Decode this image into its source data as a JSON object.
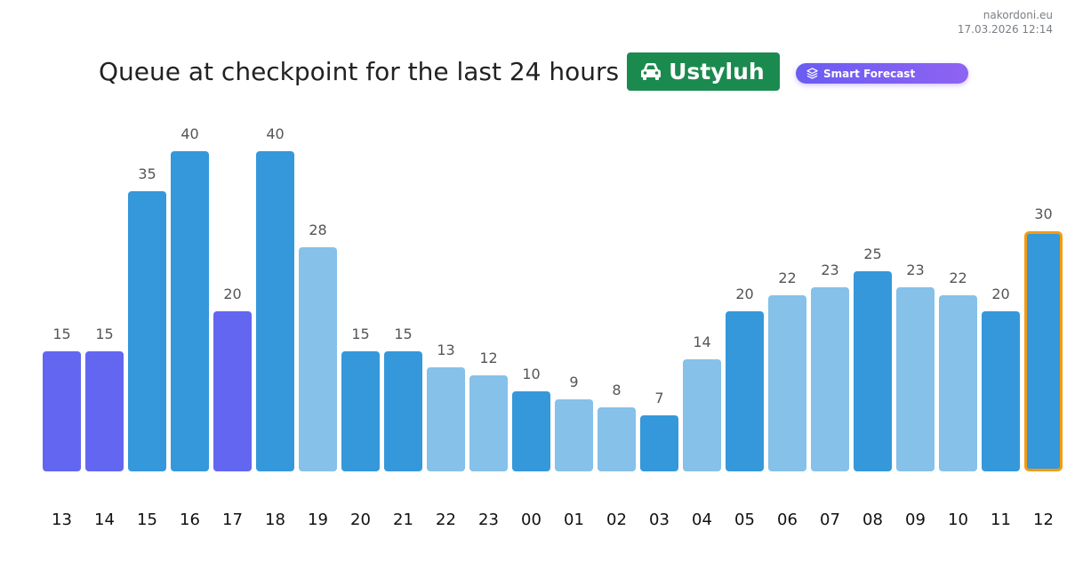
{
  "site": {
    "name": "nakordoni.eu",
    "datetime": "17.03.2026 12:14"
  },
  "header": {
    "title": "Queue at checkpoint for the last 24 hours",
    "checkpoint": "Ustyluh",
    "checkpoint_icon": "car-icon",
    "forecast_label": "Smart Forecast",
    "forecast_icon": "layers-icon"
  },
  "colors": {
    "purple": "#6366f1",
    "blue": "#3498db",
    "light_blue": "#85c1e9",
    "highlight_border": "#f39c12",
    "badge_green": "#1b8a4e"
  },
  "chart_data": {
    "type": "bar",
    "title": "",
    "xlabel": "",
    "ylabel": "",
    "categories": [
      "13",
      "14",
      "15",
      "16",
      "17",
      "18",
      "19",
      "20",
      "21",
      "22",
      "23",
      "00",
      "01",
      "02",
      "03",
      "04",
      "05",
      "06",
      "07",
      "08",
      "09",
      "10",
      "11",
      "12"
    ],
    "values": [
      15,
      15,
      35,
      40,
      20,
      40,
      28,
      15,
      15,
      13,
      12,
      10,
      9,
      8,
      7,
      14,
      20,
      22,
      23,
      25,
      23,
      22,
      20,
      30
    ],
    "bar_colors": [
      "purple",
      "purple",
      "blue",
      "blue",
      "purple",
      "blue",
      "light_blue",
      "blue",
      "blue",
      "light_blue",
      "light_blue",
      "blue",
      "light_blue",
      "light_blue",
      "blue",
      "light_blue",
      "blue",
      "light_blue",
      "light_blue",
      "blue",
      "light_blue",
      "light_blue",
      "blue",
      "blue"
    ],
    "highlighted_category": "12",
    "ylim": [
      0,
      40
    ],
    "grid": false,
    "data_labels": true
  }
}
